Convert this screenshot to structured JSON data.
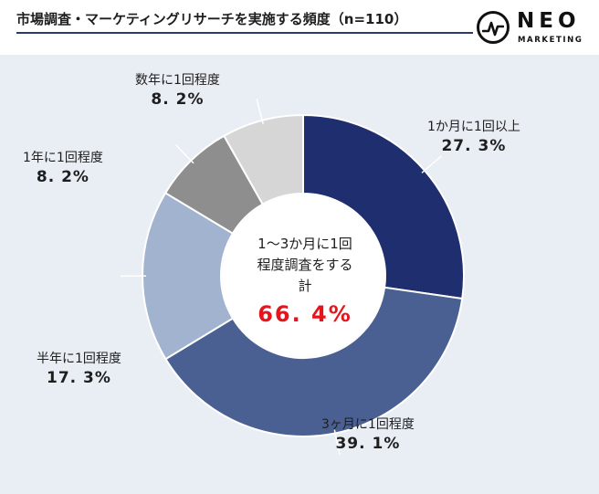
{
  "header": {
    "title": "市場調査・マーケティングリサーチを実施する頻度（n=110）"
  },
  "logo": {
    "word": "NEO",
    "sub": "MARKETING"
  },
  "center": {
    "line1": "1～3か月に1回",
    "line2": "程度調査をする",
    "line3": "計",
    "total": "66. 4%"
  },
  "colors": {
    "accent_total": "#e8141c",
    "background": "#e9edf4"
  },
  "chart_data": {
    "type": "pie",
    "donut": true,
    "title": "市場調査・マーケティングリサーチを実施する頻度（n=110）",
    "slices": [
      {
        "label": "1か月に1回以上",
        "value": 27.3,
        "display": "27. 3%",
        "color": "#1f2e6e"
      },
      {
        "label": "3ヶ月に1回程度",
        "value": 39.1,
        "display": "39. 1%",
        "color": "#4a5f92"
      },
      {
        "label": "半年に1回程度",
        "value": 17.3,
        "display": "17. 3%",
        "color": "#a2b3cf"
      },
      {
        "label": "1年に1回程度",
        "value": 8.2,
        "display": "8. 2%",
        "color": "#8e8e8e"
      },
      {
        "label": "数年に1回程度",
        "value": 8.2,
        "display": "8. 2%",
        "color": "#d6d6d6"
      }
    ],
    "center_annotation": "1～3か月に1回程度調査をする計 66. 4%"
  }
}
